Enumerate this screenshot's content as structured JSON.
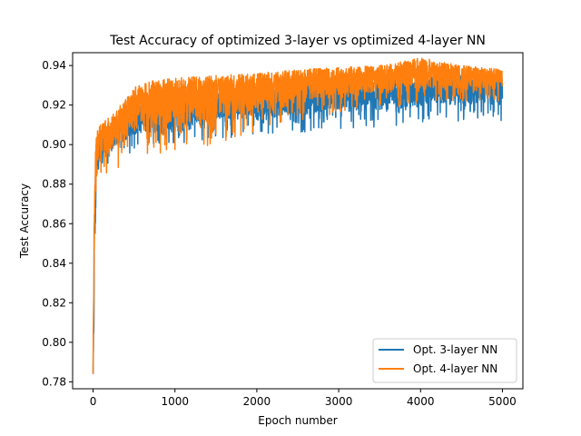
{
  "chart_data": {
    "type": "line",
    "title": "Test Accuracy of optimized 3-layer vs optimized 4-layer NN",
    "xlabel": "Epoch number",
    "ylabel": "Test Accuracy",
    "xlim": [
      -250,
      5250
    ],
    "ylim": [
      0.7765,
      0.9465
    ],
    "xticks": [
      0,
      1000,
      2000,
      3000,
      4000,
      5000
    ],
    "xtick_labels": [
      "0",
      "1000",
      "2000",
      "3000",
      "4000",
      "5000"
    ],
    "yticks": [
      0.78,
      0.8,
      0.82,
      0.84,
      0.86,
      0.88,
      0.9,
      0.92,
      0.94
    ],
    "ytick_labels": [
      "0.78",
      "0.80",
      "0.82",
      "0.84",
      "0.86",
      "0.88",
      "0.90",
      "0.92",
      "0.94"
    ],
    "grid": false,
    "legend": "lower right",
    "series": [
      {
        "name": "Opt. 3-layer NN",
        "color": "#1f77b4",
        "envelope_x": [
          0,
          15,
          30,
          50,
          80,
          120,
          200,
          300,
          400,
          500,
          700,
          1000,
          1500,
          2000,
          2500,
          3000,
          3500,
          4000,
          4500,
          5000
        ],
        "envelope_low": [
          0.784,
          0.8,
          0.855,
          0.872,
          0.88,
          0.885,
          0.889,
          0.892,
          0.894,
          0.896,
          0.898,
          0.9,
          0.902,
          0.904,
          0.906,
          0.908,
          0.909,
          0.91,
          0.911,
          0.912
        ],
        "envelope_high": [
          0.785,
          0.86,
          0.885,
          0.896,
          0.902,
          0.905,
          0.908,
          0.912,
          0.916,
          0.92,
          0.922,
          0.924,
          0.926,
          0.928,
          0.93,
          0.932,
          0.933,
          0.934,
          0.935,
          0.936
        ]
      },
      {
        "name": "Opt. 4-layer NN",
        "color": "#ff7f0e",
        "envelope_x": [
          0,
          15,
          30,
          50,
          80,
          120,
          200,
          300,
          400,
          500,
          700,
          1000,
          1500,
          2000,
          2500,
          3000,
          3500,
          4000,
          4500,
          5000
        ],
        "envelope_low": [
          0.784,
          0.82,
          0.868,
          0.878,
          0.882,
          0.884,
          0.886,
          0.888,
          0.89,
          0.892,
          0.894,
          0.896,
          0.9,
          0.906,
          0.912,
          0.916,
          0.918,
          0.92,
          0.922,
          0.922
        ],
        "envelope_high": [
          0.786,
          0.885,
          0.9,
          0.908,
          0.91,
          0.912,
          0.914,
          0.918,
          0.924,
          0.929,
          0.932,
          0.934,
          0.935,
          0.936,
          0.938,
          0.939,
          0.94,
          0.944,
          0.94,
          0.938
        ]
      }
    ]
  }
}
